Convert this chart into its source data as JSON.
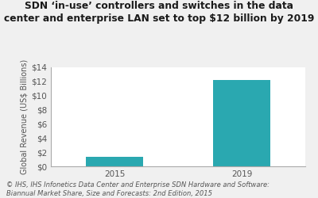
{
  "title_line1": "SDN ‘in-use’ controllers and switches in the data",
  "title_line2": "center and enterprise LAN set to top $12 billion by 2019",
  "categories": [
    "2015",
    "2019"
  ],
  "values": [
    1.4,
    12.2
  ],
  "bar_color": "#2aa8b0",
  "ylabel": "Global Revenue (US$ Billions)",
  "ylim": [
    0,
    14
  ],
  "yticks": [
    0,
    2,
    4,
    6,
    8,
    10,
    12,
    14
  ],
  "ytick_labels": [
    "$0",
    "$2",
    "$4",
    "$6",
    "$8",
    "$10",
    "$12",
    "$14"
  ],
  "footnote_line1": "© IHS, IHS Infonetics Data Center and Enterprise SDN Hardware and Software:",
  "footnote_line2": "Biannual Market Share, Size and Forecasts: 2nd Edition, 2015",
  "background_color": "#f0f0f0",
  "plot_bg_color": "#ffffff",
  "title_fontsize": 8.8,
  "axis_fontsize": 7.5,
  "ylabel_fontsize": 7.0,
  "footnote_fontsize": 6.0,
  "tick_label_color": "#555555",
  "title_color": "#1a1a1a",
  "footnote_color": "#555555"
}
